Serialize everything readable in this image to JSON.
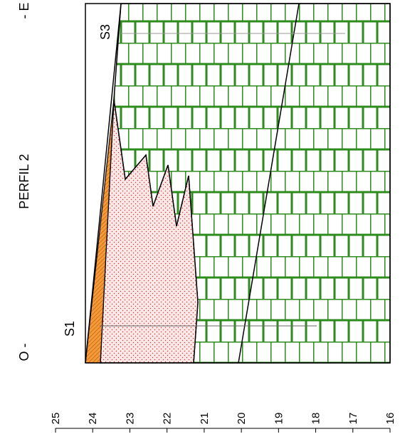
{
  "header": {
    "title": "PERFIL 2",
    "left": "O -",
    "right": "- E"
  },
  "boreholes": [
    "S1",
    "S3"
  ],
  "axis": {
    "ticks": [
      "25",
      "24",
      "23",
      "22",
      "21",
      "20",
      "19",
      "18",
      "17",
      "16"
    ]
  }
}
